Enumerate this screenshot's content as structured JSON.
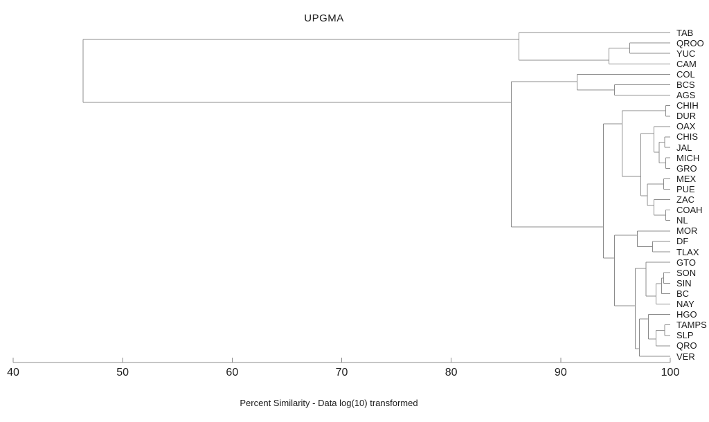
{
  "title": "UPGMA",
  "chart_data": {
    "type": "dendrogram",
    "title": "UPGMA",
    "xlabel": "Percent Similarity - Data log(10) transformed",
    "orientation": "horizontal-leaves-right",
    "xlim": [
      40,
      100
    ],
    "x_ticks": [
      40,
      50,
      60,
      70,
      80,
      90,
      100
    ],
    "grid": false,
    "line_color": "#8c8c8c",
    "text_color": "#1c1c1c",
    "leaf_tip_similarity": 100,
    "leaves": [
      "TAB",
      "QROO",
      "YUC",
      "CAM",
      "COL",
      "BCS",
      "AGS",
      "CHIH",
      "DUR",
      "OAX",
      "CHIS",
      "JAL",
      "MICH",
      "GRO",
      "MEX",
      "PUE",
      "ZAC",
      "COAH",
      "NL",
      "MOR",
      "DF",
      "TLAX",
      "GTO",
      "SON",
      "SIN",
      "BC",
      "NAY",
      "HGO",
      "TAMPS",
      "SLP",
      "QRO",
      "VER"
    ],
    "root": "root",
    "nodes": {
      "root": {
        "sim": 46.4,
        "pos": null,
        "children": [
          "nA",
          "nF"
        ]
      },
      "nA": {
        "sim": 86.2,
        "pos": 0.66,
        "children": [
          "L0",
          "nB"
        ]
      },
      "nB": {
        "sim": 94.4,
        "pos": 2.65,
        "children": [
          "nC",
          "L3"
        ]
      },
      "nC": {
        "sim": 96.3,
        "pos": 1.5,
        "children": [
          "L1",
          "L2"
        ]
      },
      "nF": {
        "sim": 85.5,
        "pos": 6.69,
        "children": [
          "nD",
          "nG"
        ]
      },
      "nD": {
        "sim": 91.5,
        "pos": 4.7,
        "children": [
          "L4",
          "nE"
        ]
      },
      "nE": {
        "sim": 94.9,
        "pos": 5.5,
        "children": [
          "L5",
          "L6"
        ]
      },
      "nG": {
        "sim": 93.9,
        "pos": 18.61,
        "children": [
          "nK",
          "nY"
        ]
      },
      "nK": {
        "sim": 95.6,
        "pos": 8.74,
        "children": [
          "nJ",
          "nL"
        ]
      },
      "nJ": {
        "sim": 99.6,
        "pos": 7.5,
        "children": [
          "L7",
          "L8"
        ]
      },
      "nL": {
        "sim": 97.3,
        "pos": 13.78,
        "children": [
          "nM",
          "nT"
        ]
      },
      "nM": {
        "sim": 98.5,
        "pos": 9.67,
        "children": [
          "L9",
          "nR"
        ]
      },
      "nR": {
        "sim": 99.0,
        "pos": 11.46,
        "children": [
          "nP",
          "nQ"
        ]
      },
      "nP": {
        "sim": 99.5,
        "pos": 10.5,
        "children": [
          "L10",
          "L11"
        ]
      },
      "nQ": {
        "sim": 99.6,
        "pos": 12.5,
        "children": [
          "L12",
          "L13"
        ]
      },
      "nT": {
        "sim": 97.9,
        "pos": 15.63,
        "children": [
          "nS",
          "nU"
        ]
      },
      "nS": {
        "sim": 99.4,
        "pos": 14.5,
        "children": [
          "L14",
          "L15"
        ]
      },
      "nU": {
        "sim": 98.5,
        "pos": 16.56,
        "children": [
          "L16",
          "nV"
        ]
      },
      "nV": {
        "sim": 99.6,
        "pos": 17.5,
        "children": [
          "L17",
          "L18"
        ]
      },
      "nY": {
        "sim": 94.9,
        "pos": 21.59,
        "children": [
          "nX",
          "nAD"
        ]
      },
      "nX": {
        "sim": 97.0,
        "pos": 19.41,
        "children": [
          "L19",
          "nW"
        ]
      },
      "nW": {
        "sim": 98.4,
        "pos": 20.5,
        "children": [
          "L20",
          "L21"
        ]
      },
      "nAD": {
        "sim": 96.8,
        "pos": 26.16,
        "children": [
          "nAC",
          "nAF"
        ]
      },
      "nAC": {
        "sim": 97.8,
        "pos": 22.58,
        "children": [
          "L22",
          "nAB"
        ]
      },
      "nAB": {
        "sim": 98.7,
        "pos": 25.24,
        "children": [
          "nAA",
          "L26"
        ]
      },
      "nAA": {
        "sim": 99.2,
        "pos": 24.04,
        "children": [
          "nZ",
          "L25"
        ]
      },
      "nZ": {
        "sim": 99.4,
        "pos": 23.5,
        "children": [
          "L23",
          "L24"
        ]
      },
      "nAF": {
        "sim": 97.2,
        "pos": 30.27,
        "children": [
          "nAE",
          "L31"
        ]
      },
      "nAE": {
        "sim": 98.0,
        "pos": 27.42,
        "children": [
          "L27",
          "nAG"
        ]
      },
      "nAG": {
        "sim": 98.7,
        "pos": 29.34,
        "children": [
          "nAH",
          "L30"
        ]
      },
      "nAH": {
        "sim": 99.5,
        "pos": 28.5,
        "children": [
          "L28",
          "L29"
        ]
      }
    }
  }
}
